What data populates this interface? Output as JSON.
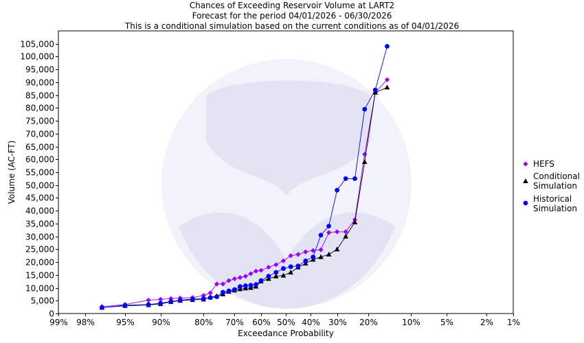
{
  "chart_data": {
    "type": "line",
    "title": [
      "Chances of Exceeding Reservoir Volume at LART2",
      "Forecast for the period 04/01/2026 - 06/30/2026",
      "This is a conditional simulation based on the current conditions as of 04/01/2026"
    ],
    "xlabel": "Exceedance Probability",
    "ylabel": "Volume (AC-FT)",
    "x_scale": "normal-probability",
    "x_ticks": [
      {
        "p": 99,
        "label": "99%"
      },
      {
        "p": 98,
        "label": "98%"
      },
      {
        "p": 95,
        "label": "95%"
      },
      {
        "p": 90,
        "label": "90%"
      },
      {
        "p": 80,
        "label": "80%"
      },
      {
        "p": 70,
        "label": "70%"
      },
      {
        "p": 60,
        "label": "60%"
      },
      {
        "p": 50,
        "label": "50%"
      },
      {
        "p": 40,
        "label": "40%"
      },
      {
        "p": 30,
        "label": "30%"
      },
      {
        "p": 20,
        "label": "20%"
      },
      {
        "p": 10,
        "label": "10%"
      },
      {
        "p": 5,
        "label": "5%"
      },
      {
        "p": 2,
        "label": "2%"
      },
      {
        "p": 1,
        "label": "1%"
      }
    ],
    "ylim": [
      0,
      110000
    ],
    "y_ticks": [
      {
        "v": 0,
        "label": "0"
      },
      {
        "v": 5000,
        "label": "5,000"
      },
      {
        "v": 10000,
        "label": "10,000"
      },
      {
        "v": 15000,
        "label": "15,000"
      },
      {
        "v": 20000,
        "label": "20,000"
      },
      {
        "v": 25000,
        "label": "25,000"
      },
      {
        "v": 30000,
        "label": "30,000"
      },
      {
        "v": 35000,
        "label": "35,000"
      },
      {
        "v": 40000,
        "label": "40,000"
      },
      {
        "v": 45000,
        "label": "45,000"
      },
      {
        "v": 50000,
        "label": "50,000"
      },
      {
        "v": 55000,
        "label": "55,000"
      },
      {
        "v": 60000,
        "label": "60,000"
      },
      {
        "v": 65000,
        "label": "65,000"
      },
      {
        "v": 70000,
        "label": "70,000"
      },
      {
        "v": 75000,
        "label": "75,000"
      },
      {
        "v": 80000,
        "label": "80,000"
      },
      {
        "v": 85000,
        "label": "85,000"
      },
      {
        "v": 90000,
        "label": "90,000"
      },
      {
        "v": 95000,
        "label": "95,000"
      },
      {
        "v": 100000,
        "label": "100,000"
      },
      {
        "v": 105000,
        "label": "105,000"
      }
    ],
    "grid": false,
    "legend_position": "right",
    "series": [
      {
        "name": "HEFS",
        "marker": "diamond",
        "color": "#9900ff",
        "points": [
          [
            97,
            2700
          ],
          [
            95,
            3500
          ],
          [
            92,
            5200
          ],
          [
            90,
            5500
          ],
          [
            88,
            5800
          ],
          [
            86,
            6000
          ],
          [
            83,
            6200
          ],
          [
            80,
            7000
          ],
          [
            78,
            8000
          ],
          [
            76,
            11500
          ],
          [
            74,
            11500
          ],
          [
            72,
            12800
          ],
          [
            70,
            13500
          ],
          [
            68,
            14000
          ],
          [
            66,
            14500
          ],
          [
            64,
            15500
          ],
          [
            62,
            16500
          ],
          [
            60,
            16800
          ],
          [
            57,
            18000
          ],
          [
            54,
            19000
          ],
          [
            51,
            20500
          ],
          [
            48,
            22500
          ],
          [
            45,
            23000
          ],
          [
            42,
            24000
          ],
          [
            39,
            24500
          ],
          [
            36,
            24800
          ],
          [
            33,
            31500
          ],
          [
            30,
            31800
          ],
          [
            27,
            31800
          ],
          [
            24,
            36500
          ],
          [
            21,
            62000
          ],
          [
            18,
            86000
          ],
          [
            15,
            91000
          ]
        ]
      },
      {
        "name": "Conditional Simulation",
        "marker": "triangle",
        "color": "#000000",
        "points": [
          [
            97,
            2300
          ],
          [
            95,
            3000
          ],
          [
            92,
            3300
          ],
          [
            90,
            3700
          ],
          [
            88,
            4500
          ],
          [
            86,
            5000
          ],
          [
            83,
            5300
          ],
          [
            80,
            5500
          ],
          [
            78,
            6300
          ],
          [
            76,
            6800
          ],
          [
            74,
            7500
          ],
          [
            72,
            8500
          ],
          [
            70,
            9000
          ],
          [
            68,
            9500
          ],
          [
            66,
            9800
          ],
          [
            64,
            10000
          ],
          [
            62,
            10500
          ],
          [
            60,
            12500
          ],
          [
            57,
            13500
          ],
          [
            54,
            14500
          ],
          [
            51,
            14800
          ],
          [
            48,
            16000
          ],
          [
            45,
            18000
          ],
          [
            42,
            19500
          ],
          [
            39,
            21000
          ],
          [
            36,
            22000
          ],
          [
            33,
            23000
          ],
          [
            30,
            25000
          ],
          [
            27,
            30000
          ],
          [
            24,
            35500
          ],
          [
            21,
            59000
          ],
          [
            18,
            86000
          ],
          [
            15,
            88000
          ]
        ]
      },
      {
        "name": "Historical Simulation",
        "marker": "circle",
        "color": "#0000ff",
        "points": [
          [
            97,
            2300
          ],
          [
            95,
            3200
          ],
          [
            92,
            3500
          ],
          [
            90,
            4000
          ],
          [
            88,
            4700
          ],
          [
            86,
            5200
          ],
          [
            83,
            5600
          ],
          [
            80,
            5800
          ],
          [
            78,
            6200
          ],
          [
            76,
            6500
          ],
          [
            74,
            8300
          ],
          [
            72,
            8800
          ],
          [
            70,
            9300
          ],
          [
            68,
            10500
          ],
          [
            66,
            10800
          ],
          [
            64,
            11000
          ],
          [
            62,
            11300
          ],
          [
            60,
            12800
          ],
          [
            57,
            14500
          ],
          [
            54,
            16000
          ],
          [
            51,
            17500
          ],
          [
            48,
            18200
          ],
          [
            45,
            18500
          ],
          [
            42,
            20500
          ],
          [
            39,
            22000
          ],
          [
            36,
            30500
          ],
          [
            33,
            34000
          ],
          [
            30,
            48000
          ],
          [
            27,
            52500
          ],
          [
            24,
            52500
          ],
          [
            21,
            79500
          ],
          [
            18,
            87000
          ],
          [
            15,
            104000
          ]
        ]
      }
    ],
    "legend_labels": [
      {
        "series": "HEFS",
        "lines": [
          "HEFS"
        ]
      },
      {
        "series": "Conditional Simulation",
        "lines": [
          "Conditional",
          "Simulation"
        ]
      },
      {
        "series": "Historical Simulation",
        "lines": [
          "Historical",
          "Simulation"
        ]
      }
    ]
  }
}
